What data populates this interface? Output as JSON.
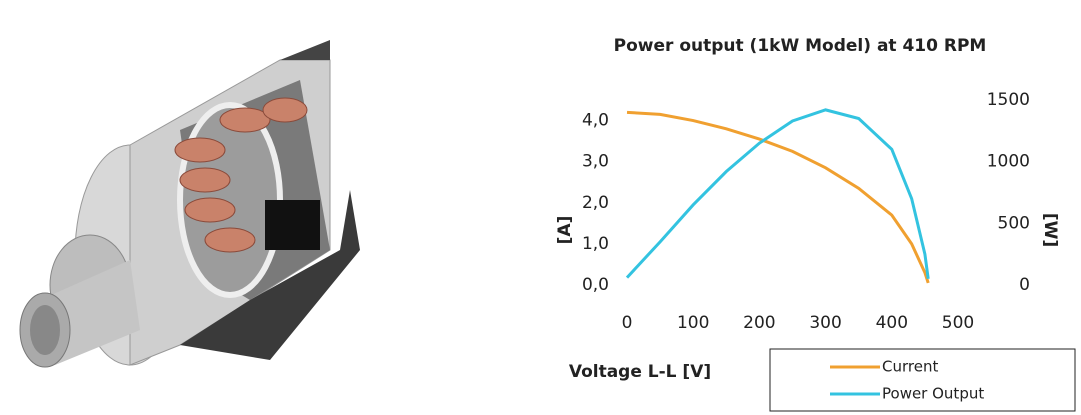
{
  "chart_data": {
    "type": "line",
    "title": "Power output (1kW Model) at 410 RPM",
    "x_label": "Voltage L-L [V]",
    "y_label": "[A]",
    "y2_label": "[W]",
    "x": [
      0,
      50,
      100,
      150,
      200,
      250,
      300,
      350,
      400,
      430,
      450,
      455
    ],
    "series": [
      {
        "name": "Current",
        "color": "#f0a030",
        "values": [
          4.2,
          4.15,
          4.0,
          3.8,
          3.55,
          3.25,
          2.85,
          2.35,
          1.7,
          1.0,
          0.3,
          0.05
        ]
      },
      {
        "name": "Power Output",
        "color": "#33c3e0",
        "axis": "y2",
        "values": [
          60,
          350,
          650,
          920,
          1150,
          1330,
          1420,
          1350,
          1100,
          700,
          250,
          50
        ]
      }
    ],
    "xlim": [
      0,
      500
    ],
    "xticks": [
      0,
      100,
      200,
      300,
      400,
      500
    ],
    "ylim": [
      0,
      4.5
    ],
    "yticks": [
      {
        "value": 0,
        "label": "0,0"
      },
      {
        "value": 1,
        "label": "1,0"
      },
      {
        "value": 2,
        "label": "2,0"
      },
      {
        "value": 3,
        "label": "3,0"
      },
      {
        "value": 4,
        "label": "4,0"
      }
    ],
    "y2lim": [
      0,
      1500
    ],
    "y2ticks": [
      0,
      500,
      1000,
      1500
    ],
    "grid": false,
    "legend": "lower right"
  }
}
